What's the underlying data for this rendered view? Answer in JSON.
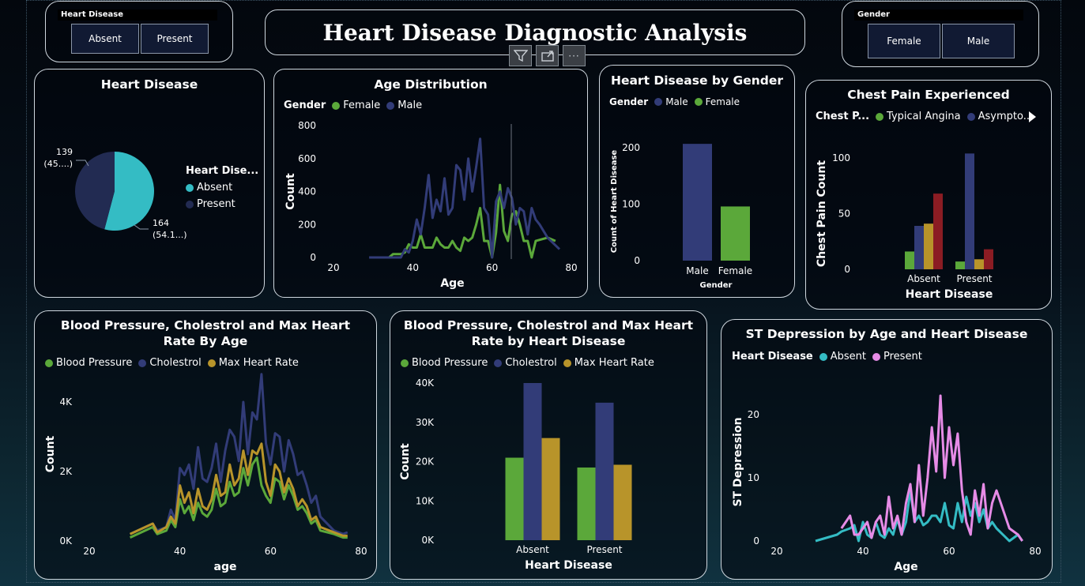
{
  "title": "Heart Disease Diagnostic Analysis",
  "colors": {
    "green": "#5ba83a",
    "navy": "#323c78",
    "gold": "#b8942a",
    "darkred": "#8b1c23",
    "teal": "#34bcc4",
    "pink": "#e68be6",
    "piedark": "#222b52"
  },
  "slicers": {
    "heart": {
      "label": "Heart Disease",
      "options": [
        "Absent",
        "Present"
      ]
    },
    "gender": {
      "label": "Gender",
      "options": [
        "Female",
        "Male"
      ]
    }
  },
  "toolbar": {
    "filter_icon": "filter-icon",
    "focus_icon": "focus-mode-icon",
    "more_icon": "more-options-icon",
    "more_label": "···"
  },
  "chart_data": [
    {
      "id": "pie",
      "type": "pie",
      "title": "Heart Disease",
      "legend_title": "Heart Dise...",
      "slices": [
        {
          "label": "Absent",
          "value": 164,
          "data_label": "164",
          "pct_label": "(54.1...)"
        },
        {
          "label": "Present",
          "value": 139,
          "data_label": "139",
          "pct_label": "(45....)"
        }
      ]
    },
    {
      "id": "age",
      "type": "line",
      "title": "Age Distribution",
      "legend_title": "Gender",
      "xlabel": "Age",
      "ylabel": "Count",
      "xlim": [
        20,
        80
      ],
      "ylim": [
        0,
        800
      ],
      "xticks": [
        "20",
        "40",
        "60",
        "80"
      ],
      "yticks": [
        "0",
        "200",
        "400",
        "600",
        "800"
      ],
      "series": [
        {
          "name": "Female",
          "x": [
            34,
            35,
            37,
            38,
            39,
            40,
            41,
            42,
            43,
            44,
            45,
            46,
            47,
            48,
            49,
            50,
            51,
            52,
            53,
            54,
            55,
            56,
            57,
            58,
            59,
            60,
            61,
            62,
            63,
            64,
            65,
            66,
            67,
            68,
            69,
            70,
            71,
            74,
            76
          ],
          "y": [
            0,
            20,
            20,
            30,
            80,
            60,
            60,
            140,
            60,
            60,
            60,
            120,
            80,
            60,
            60,
            100,
            60,
            40,
            120,
            100,
            120,
            200,
            300,
            100,
            100,
            0,
            150,
            440,
            160,
            100,
            260,
            280,
            200,
            100,
            100,
            0,
            100,
            120,
            100
          ]
        },
        {
          "name": "Male",
          "x": [
            29,
            34,
            35,
            37,
            38,
            39,
            40,
            41,
            42,
            43,
            44,
            45,
            46,
            47,
            48,
            49,
            50,
            51,
            52,
            53,
            54,
            55,
            56,
            57,
            58,
            59,
            60,
            61,
            62,
            63,
            64,
            65,
            66,
            67,
            68,
            69,
            70,
            71,
            72,
            74,
            77
          ],
          "y": [
            0,
            0,
            0,
            0,
            50,
            30,
            100,
            230,
            140,
            300,
            500,
            240,
            350,
            280,
            480,
            260,
            300,
            560,
            530,
            350,
            600,
            400,
            550,
            720,
            300,
            260,
            0,
            340,
            400,
            300,
            420,
            360,
            200,
            300,
            280,
            140,
            300,
            230,
            200,
            120,
            50
          ]
        }
      ]
    },
    {
      "id": "gender",
      "type": "bar",
      "title": "Heart Disease by Gender",
      "legend_title": "Gender",
      "xlabel": "Gender",
      "ylabel": "Count of Heart Disease",
      "ylim": [
        0,
        200
      ],
      "yticks": [
        "0",
        "100",
        "200"
      ],
      "legend_entries": [
        "Male",
        "Female"
      ],
      "categories": [
        "Male",
        "Female"
      ],
      "values": [
        207,
        96
      ]
    },
    {
      "id": "chest",
      "type": "bar",
      "title": "Chest Pain Experienced",
      "legend_title": "Chest P...",
      "xlabel": "Heart Disease",
      "ylabel": "Chest Pain Count",
      "ylim": [
        0,
        100
      ],
      "yticks": [
        "0",
        "50",
        "100"
      ],
      "categories": [
        "Absent",
        "Present"
      ],
      "series": [
        {
          "name": "Typical Angina",
          "values": [
            16,
            7
          ]
        },
        {
          "name": "Asympto...",
          "values": [
            39,
            104
          ]
        },
        {
          "name": "",
          "values": [
            41,
            9
          ]
        },
        {
          "name": "",
          "values": [
            68,
            18
          ]
        }
      ]
    },
    {
      "id": "bpage",
      "type": "line",
      "title": "Blood Pressure, Cholestrol and Max Heart Rate By Age",
      "xlabel": "age",
      "ylabel": "Count",
      "xlim": [
        20,
        80
      ],
      "ylim": [
        0,
        5000
      ],
      "xticks": [
        "20",
        "40",
        "60",
        "80"
      ],
      "yticks": [
        "0K",
        "2K",
        "4K"
      ],
      "series": [
        {
          "name": "Blood Pressure",
          "x": [
            29,
            34,
            35,
            37,
            38,
            39,
            40,
            41,
            42,
            43,
            44,
            45,
            46,
            47,
            48,
            49,
            50,
            51,
            52,
            53,
            54,
            55,
            56,
            57,
            58,
            59,
            60,
            61,
            62,
            63,
            64,
            65,
            66,
            67,
            68,
            69,
            70,
            71,
            74,
            76,
            77
          ],
          "y": [
            100,
            400,
            200,
            300,
            600,
            400,
            1200,
            800,
            1000,
            600,
            1100,
            800,
            700,
            900,
            1500,
            1000,
            1100,
            1700,
            1300,
            1400,
            2100,
            1600,
            2200,
            2400,
            1600,
            1300,
            1100,
            1800,
            1700,
            1200,
            1600,
            1300,
            900,
            1000,
            800,
            500,
            600,
            300,
            200,
            100,
            100
          ]
        },
        {
          "name": "Cholestrol",
          "x": [
            29,
            34,
            35,
            37,
            38,
            39,
            40,
            41,
            42,
            43,
            44,
            45,
            46,
            47,
            48,
            49,
            50,
            51,
            52,
            53,
            54,
            55,
            56,
            57,
            58,
            59,
            60,
            61,
            62,
            63,
            64,
            65,
            66,
            67,
            68,
            69,
            70,
            71,
            74,
            76,
            77
          ],
          "y": [
            200,
            500,
            300,
            400,
            900,
            600,
            2100,
            1900,
            2200,
            1500,
            2700,
            1800,
            1700,
            2100,
            2800,
            1700,
            2600,
            3200,
            3000,
            2300,
            4000,
            2500,
            3700,
            3500,
            4800,
            2800,
            2200,
            3100,
            3000,
            2000,
            2900,
            2500,
            1900,
            2000,
            1600,
            1100,
            1300,
            700,
            300,
            200,
            250
          ]
        },
        {
          "name": "Max Heart Rate",
          "x": [
            29,
            34,
            35,
            37,
            38,
            39,
            40,
            41,
            42,
            43,
            44,
            45,
            46,
            47,
            48,
            49,
            50,
            51,
            52,
            53,
            54,
            55,
            56,
            57,
            58,
            59,
            60,
            61,
            62,
            63,
            64,
            65,
            66,
            67,
            68,
            69,
            70,
            71,
            74,
            76,
            77
          ],
          "y": [
            200,
            500,
            250,
            400,
            700,
            500,
            1600,
            1100,
            1400,
            800,
            1500,
            1000,
            900,
            1200,
            1900,
            1300,
            1400,
            2200,
            1600,
            1800,
            2600,
            1900,
            2600,
            2500,
            2800,
            1700,
            1300,
            2200,
            2000,
            1400,
            1800,
            1500,
            1000,
            1200,
            1000,
            600,
            700,
            400,
            250,
            150,
            150
          ]
        }
      ]
    },
    {
      "id": "bphd",
      "type": "bar",
      "title": "Blood Pressure, Cholestrol and Max Heart Rate by Heart Disease",
      "xlabel": "Heart Disease",
      "ylabel": "Count",
      "ylim": [
        0,
        40000
      ],
      "yticks": [
        "0K",
        "10K",
        "20K",
        "30K",
        "40K"
      ],
      "categories": [
        "Absent",
        "Present"
      ],
      "series": [
        {
          "name": "Blood Pressure",
          "values": [
            21000,
            18500
          ]
        },
        {
          "name": "Cholestrol",
          "values": [
            40000,
            35000
          ]
        },
        {
          "name": "Max Heart Rate",
          "values": [
            26000,
            19200
          ]
        }
      ]
    },
    {
      "id": "st",
      "type": "line",
      "title": "ST Depression by Age and Heart Disease",
      "legend_title": "Heart Disease",
      "xlabel": "Age",
      "ylabel": "ST Depression",
      "xlim": [
        20,
        80
      ],
      "ylim": [
        0,
        25
      ],
      "xticks": [
        "20",
        "40",
        "60",
        "80"
      ],
      "yticks": [
        "0",
        "10",
        "20"
      ],
      "series": [
        {
          "name": "Absent",
          "x": [
            29,
            34,
            35,
            37,
            38,
            39,
            40,
            41,
            42,
            43,
            44,
            45,
            46,
            47,
            48,
            49,
            50,
            51,
            52,
            53,
            54,
            55,
            56,
            57,
            58,
            59,
            60,
            61,
            62,
            63,
            64,
            65,
            66,
            67,
            68,
            69,
            70,
            71,
            74,
            76,
            77
          ],
          "y": [
            0,
            1,
            1.5,
            2,
            2.5,
            0,
            3,
            1,
            0.5,
            3,
            1,
            0.5,
            2,
            1,
            3.5,
            1,
            3,
            8,
            3,
            4,
            2.5,
            3,
            4,
            4,
            3,
            6,
            2.5,
            2,
            6,
            3,
            7,
            4,
            6,
            3,
            5,
            2,
            3,
            2,
            0,
            1,
            0
          ]
        },
        {
          "name": "Present",
          "x": [
            35,
            37,
            38,
            39,
            40,
            41,
            42,
            43,
            44,
            45,
            46,
            47,
            48,
            49,
            50,
            51,
            52,
            53,
            54,
            55,
            56,
            57,
            58,
            59,
            60,
            61,
            62,
            63,
            64,
            65,
            66,
            67,
            68,
            69,
            70,
            71,
            74,
            76,
            77
          ],
          "y": [
            2,
            4,
            1,
            1,
            2,
            3,
            0.5,
            3,
            4,
            1,
            7,
            2,
            4,
            1,
            6,
            9,
            3,
            12,
            4,
            10,
            18,
            11,
            23,
            10,
            18,
            12,
            17,
            8,
            3,
            1,
            8,
            4,
            9,
            2,
            6,
            8,
            2,
            1,
            0
          ]
        }
      ]
    }
  ]
}
